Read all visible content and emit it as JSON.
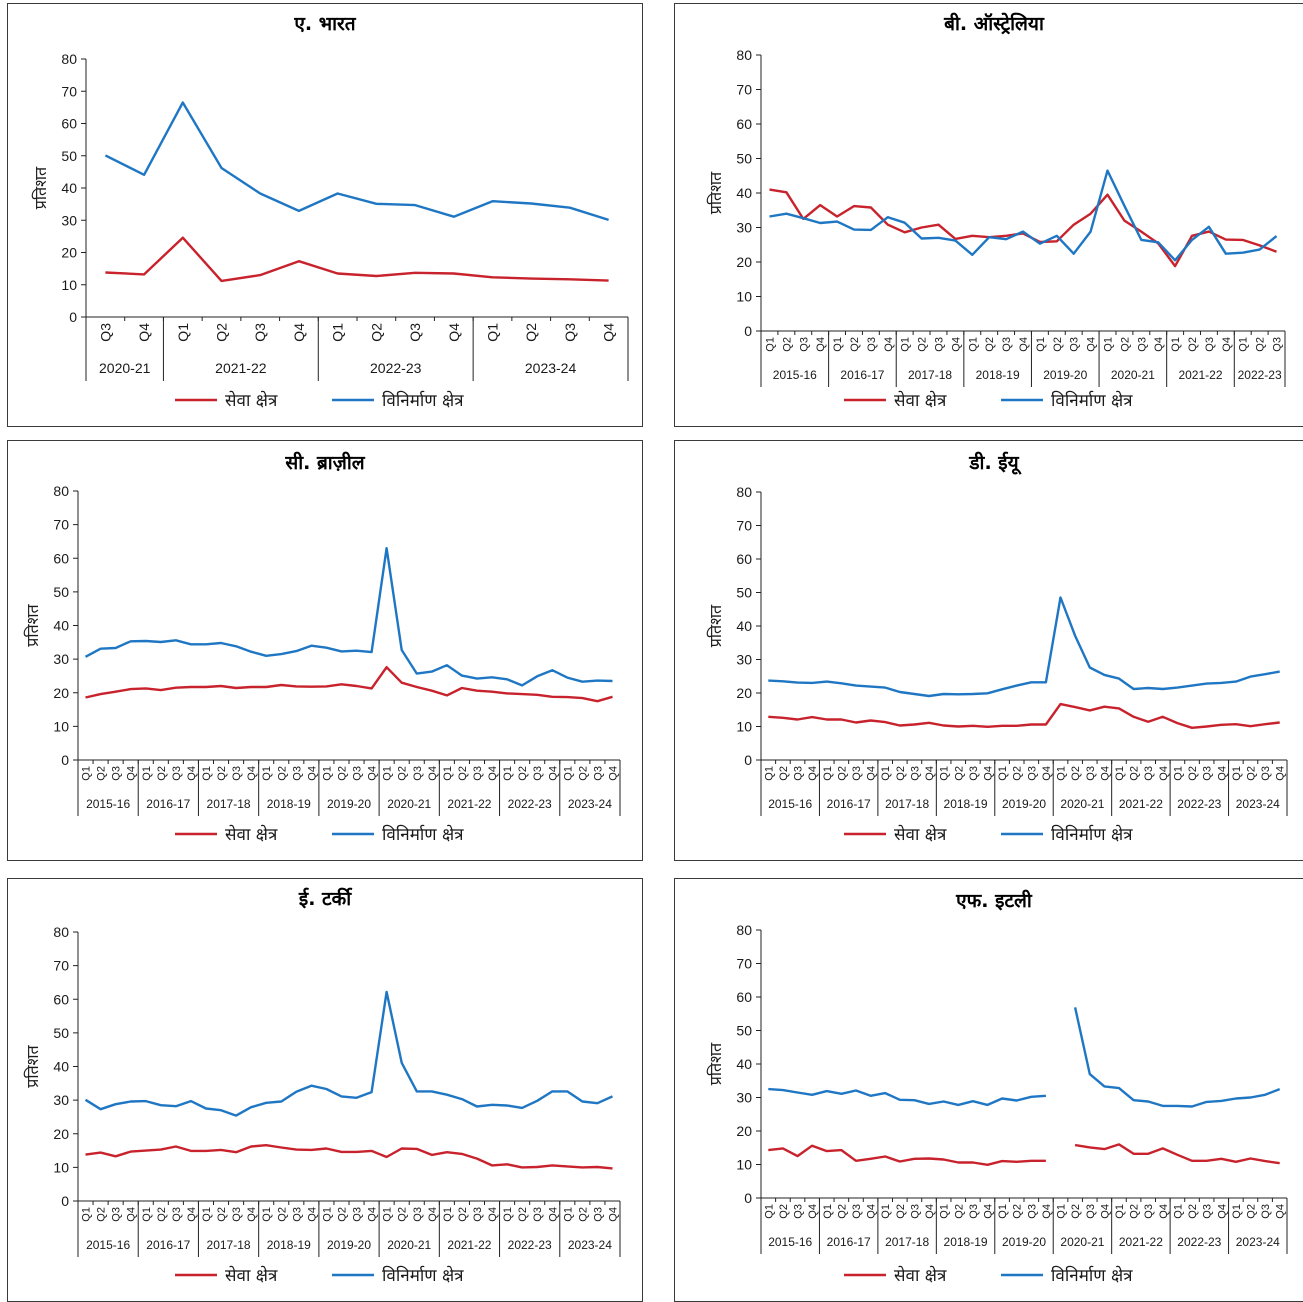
{
  "legend": {
    "service": "सेवा क्षेत्र",
    "manufacturing": "विनिर्माण क्षेत्र"
  },
  "colors": {
    "service": "#c8222c",
    "manufacturing": "#1f77c4"
  },
  "chart_data": [
    {
      "type": "line",
      "title": "ए. भारत",
      "ylabel": "प्रतिशत",
      "ylim": [
        0,
        80
      ],
      "yticks": [
        0,
        10,
        20,
        30,
        40,
        50,
        60,
        70,
        80
      ],
      "x": [
        "Q3",
        "Q4",
        "Q1",
        "Q2",
        "Q3",
        "Q4",
        "Q1",
        "Q2",
        "Q3",
        "Q4",
        "Q1",
        "Q2",
        "Q3",
        "Q4"
      ],
      "year_groups": [
        {
          "label": "2020-21",
          "count": 2
        },
        {
          "label": "2021-22",
          "count": 4
        },
        {
          "label": "2022-23",
          "count": 4
        },
        {
          "label": "2023-24",
          "count": 4
        }
      ],
      "series": [
        {
          "name": "सेवा क्षेत्र",
          "values": [
            13.8,
            13.2,
            24.6,
            11.2,
            13.0,
            17.3,
            13.5,
            12.7,
            13.7,
            13.5,
            12.3,
            11.9,
            11.7,
            11.3
          ]
        },
        {
          "name": "विनिर्माण क्षेत्र",
          "values": [
            50.1,
            44.1,
            66.5,
            46.2,
            38.3,
            32.9,
            38.3,
            35.1,
            34.7,
            31.1,
            35.9,
            35.2,
            33.9,
            30.1
          ]
        }
      ]
    },
    {
      "type": "line",
      "title": "बी. ऑस्ट्रेलिया",
      "ylabel": "प्रतिशत",
      "ylim": [
        0,
        80
      ],
      "yticks": [
        0,
        10,
        20,
        30,
        40,
        50,
        60,
        70,
        80
      ],
      "x": [
        "Q1",
        "Q2",
        "Q3",
        "Q4",
        "Q1",
        "Q2",
        "Q3",
        "Q4",
        "Q1",
        "Q2",
        "Q3",
        "Q4",
        "Q1",
        "Q2",
        "Q3",
        "Q4",
        "Q1",
        "Q2",
        "Q3",
        "Q4",
        "Q1",
        "Q2",
        "Q3",
        "Q4",
        "Q1",
        "Q2",
        "Q3",
        "Q4",
        "Q1",
        "Q2",
        "Q3"
      ],
      "year_groups": [
        {
          "label": "2015-16",
          "count": 4
        },
        {
          "label": "2016-17",
          "count": 4
        },
        {
          "label": "2017-18",
          "count": 4
        },
        {
          "label": "2018-19",
          "count": 4
        },
        {
          "label": "2019-20",
          "count": 4
        },
        {
          "label": "2020-21",
          "count": 4
        },
        {
          "label": "2021-22",
          "count": 4
        },
        {
          "label": "2022-23",
          "count": 3
        }
      ],
      "series": [
        {
          "name": "सेवा क्षेत्र",
          "values": [
            41.0,
            40.2,
            32.5,
            36.5,
            33.2,
            36.2,
            35.8,
            30.8,
            28.6,
            30.0,
            30.8,
            26.7,
            27.6,
            27.2,
            27.6,
            28.3,
            25.8,
            26.0,
            30.8,
            34.0,
            39.5,
            32.0,
            28.8,
            25.4,
            18.8,
            27.6,
            28.8,
            26.5,
            26.4,
            24.8,
            23.0
          ]
        },
        {
          "name": "विनिर्माण क्षेत्र",
          "values": [
            33.2,
            34.0,
            32.7,
            31.3,
            31.7,
            29.4,
            29.3,
            33.0,
            31.4,
            26.8,
            27.0,
            26.2,
            22.1,
            27.2,
            26.6,
            28.8,
            25.3,
            27.6,
            22.4,
            28.8,
            46.5,
            36.3,
            26.4,
            25.7,
            20.5,
            26.4,
            30.2,
            22.4,
            22.7,
            23.6,
            27.5
          ]
        }
      ]
    },
    {
      "type": "line",
      "title": "सी. ब्राज़ील",
      "ylabel": "प्रतिशत",
      "ylim": [
        0,
        80
      ],
      "yticks": [
        0,
        10,
        20,
        30,
        40,
        50,
        60,
        70,
        80
      ],
      "x": [
        "Q1",
        "Q2",
        "Q3",
        "Q4",
        "Q1",
        "Q2",
        "Q3",
        "Q4",
        "Q1",
        "Q2",
        "Q3",
        "Q4",
        "Q1",
        "Q2",
        "Q3",
        "Q4",
        "Q1",
        "Q2",
        "Q3",
        "Q4",
        "Q1",
        "Q2",
        "Q3",
        "Q4",
        "Q1",
        "Q2",
        "Q3",
        "Q4",
        "Q1",
        "Q2",
        "Q3",
        "Q4",
        "Q1",
        "Q2",
        "Q3",
        "Q4"
      ],
      "year_groups": [
        {
          "label": "2015-16",
          "count": 4
        },
        {
          "label": "2016-17",
          "count": 4
        },
        {
          "label": "2017-18",
          "count": 4
        },
        {
          "label": "2018-19",
          "count": 4
        },
        {
          "label": "2019-20",
          "count": 4
        },
        {
          "label": "2020-21",
          "count": 4
        },
        {
          "label": "2021-22",
          "count": 4
        },
        {
          "label": "2022-23",
          "count": 4
        },
        {
          "label": "2023-24",
          "count": 4
        }
      ],
      "series": [
        {
          "name": "सेवा क्षेत्र",
          "values": [
            18.6,
            19.6,
            20.3,
            21.1,
            21.3,
            20.8,
            21.5,
            21.7,
            21.7,
            22.0,
            21.4,
            21.7,
            21.7,
            22.3,
            21.9,
            21.8,
            21.9,
            22.5,
            22.0,
            21.3,
            27.6,
            23.0,
            21.7,
            20.6,
            19.2,
            21.4,
            20.6,
            20.3,
            19.8,
            19.6,
            19.4,
            18.8,
            18.7,
            18.4,
            17.5,
            18.8
          ]
        },
        {
          "name": "विनिर्माण क्षेत्र",
          "values": [
            30.7,
            33.1,
            33.3,
            35.3,
            35.4,
            35.1,
            35.6,
            34.4,
            34.4,
            34.8,
            33.8,
            32.2,
            31.0,
            31.5,
            32.4,
            34.0,
            33.4,
            32.3,
            32.5,
            32.1,
            63.0,
            32.7,
            25.7,
            26.3,
            28.2,
            25.1,
            24.2,
            24.6,
            24.0,
            22.2,
            24.9,
            26.7,
            24.5,
            23.3,
            23.6,
            23.5
          ]
        }
      ]
    },
    {
      "type": "line",
      "title": "डी. ईयू",
      "ylabel": "प्रतिशत",
      "ylim": [
        0,
        80
      ],
      "yticks": [
        0,
        10,
        20,
        30,
        40,
        50,
        60,
        70,
        80
      ],
      "x": [
        "Q1",
        "Q2",
        "Q3",
        "Q4",
        "Q1",
        "Q2",
        "Q3",
        "Q4",
        "Q1",
        "Q2",
        "Q3",
        "Q4",
        "Q1",
        "Q2",
        "Q3",
        "Q4",
        "Q1",
        "Q2",
        "Q3",
        "Q4",
        "Q1",
        "Q2",
        "Q3",
        "Q4",
        "Q1",
        "Q2",
        "Q3",
        "Q4",
        "Q1",
        "Q2",
        "Q3",
        "Q4",
        "Q1",
        "Q2",
        "Q3",
        "Q4"
      ],
      "year_groups": [
        {
          "label": "2015-16",
          "count": 4
        },
        {
          "label": "2016-17",
          "count": 4
        },
        {
          "label": "2017-18",
          "count": 4
        },
        {
          "label": "2018-19",
          "count": 4
        },
        {
          "label": "2019-20",
          "count": 4
        },
        {
          "label": "2020-21",
          "count": 4
        },
        {
          "label": "2021-22",
          "count": 4
        },
        {
          "label": "2022-23",
          "count": 4
        },
        {
          "label": "2023-24",
          "count": 4
        }
      ],
      "series": [
        {
          "name": "सेवा क्षेत्र",
          "values": [
            12.9,
            12.6,
            12.1,
            12.8,
            12.1,
            12.1,
            11.2,
            11.8,
            11.3,
            10.3,
            10.6,
            11.1,
            10.3,
            10.0,
            10.2,
            9.9,
            10.2,
            10.2,
            10.6,
            10.6,
            16.7,
            15.8,
            14.8,
            15.9,
            15.4,
            12.9,
            11.4,
            12.9,
            11.0,
            9.6,
            10.0,
            10.5,
            10.7,
            10.1,
            10.7,
            11.2
          ]
        },
        {
          "name": "विनिर्माण क्षेत्र",
          "values": [
            23.7,
            23.5,
            23.1,
            23.0,
            23.4,
            22.9,
            22.2,
            21.9,
            21.6,
            20.3,
            19.7,
            19.1,
            19.7,
            19.6,
            19.7,
            19.9,
            21.1,
            22.2,
            23.2,
            23.2,
            48.5,
            37.1,
            27.6,
            25.4,
            24.3,
            21.2,
            21.5,
            21.2,
            21.6,
            22.2,
            22.8,
            23.0,
            23.4,
            24.9,
            25.6,
            26.4
          ]
        }
      ]
    },
    {
      "type": "line",
      "title": "ई. टर्की",
      "ylabel": "प्रतिशत",
      "ylim": [
        0,
        80
      ],
      "yticks": [
        0,
        10,
        20,
        30,
        40,
        50,
        60,
        70,
        80
      ],
      "x": [
        "Q1",
        "Q2",
        "Q3",
        "Q4",
        "Q1",
        "Q2",
        "Q3",
        "Q4",
        "Q1",
        "Q2",
        "Q3",
        "Q4",
        "Q1",
        "Q2",
        "Q3",
        "Q4",
        "Q1",
        "Q2",
        "Q3",
        "Q4",
        "Q1",
        "Q2",
        "Q3",
        "Q4",
        "Q1",
        "Q2",
        "Q3",
        "Q4",
        "Q1",
        "Q2",
        "Q3",
        "Q4",
        "Q1",
        "Q2",
        "Q3",
        "Q4"
      ],
      "year_groups": [
        {
          "label": "2015-16",
          "count": 4
        },
        {
          "label": "2016-17",
          "count": 4
        },
        {
          "label": "2017-18",
          "count": 4
        },
        {
          "label": "2018-19",
          "count": 4
        },
        {
          "label": "2019-20",
          "count": 4
        },
        {
          "label": "2020-21",
          "count": 4
        },
        {
          "label": "2021-22",
          "count": 4
        },
        {
          "label": "2022-23",
          "count": 4
        },
        {
          "label": "2023-24",
          "count": 4
        }
      ],
      "series": [
        {
          "name": "सेवा क्षेत्र",
          "values": [
            13.8,
            14.4,
            13.3,
            14.7,
            15.0,
            15.3,
            16.2,
            14.9,
            14.9,
            15.2,
            14.5,
            16.2,
            16.6,
            15.9,
            15.3,
            15.2,
            15.6,
            14.6,
            14.6,
            14.9,
            13.1,
            15.6,
            15.5,
            13.7,
            14.5,
            14.0,
            12.6,
            10.6,
            10.9,
            10.0,
            10.1,
            10.6,
            10.3,
            10.0,
            10.1,
            9.7
          ]
        },
        {
          "name": "विनिर्माण क्षेत्र",
          "values": [
            30.1,
            27.3,
            28.8,
            29.6,
            29.7,
            28.5,
            28.2,
            29.7,
            27.5,
            27.0,
            25.4,
            27.9,
            29.2,
            29.6,
            32.5,
            34.3,
            33.3,
            31.1,
            30.7,
            32.4,
            62.2,
            41.1,
            32.6,
            32.6,
            31.6,
            30.3,
            28.1,
            28.6,
            28.4,
            27.7,
            29.8,
            32.6,
            32.6,
            29.6,
            29.1,
            31.1
          ]
        }
      ]
    },
    {
      "type": "line",
      "title": "एफ. इटली",
      "ylabel": "प्रतिशत",
      "ylim": [
        0,
        80
      ],
      "yticks": [
        0,
        10,
        20,
        30,
        40,
        50,
        60,
        70,
        80
      ],
      "x": [
        "Q1",
        "Q2",
        "Q3",
        "Q4",
        "Q1",
        "Q2",
        "Q3",
        "Q4",
        "Q1",
        "Q2",
        "Q3",
        "Q4",
        "Q1",
        "Q2",
        "Q3",
        "Q4",
        "Q1",
        "Q2",
        "Q3",
        "Q4",
        "Q1",
        "Q2",
        "Q3",
        "Q4",
        "Q1",
        "Q2",
        "Q3",
        "Q4",
        "Q1",
        "Q2",
        "Q3",
        "Q4",
        "Q1",
        "Q2",
        "Q3",
        "Q4"
      ],
      "year_groups": [
        {
          "label": "2015-16",
          "count": 4
        },
        {
          "label": "2016-17",
          "count": 4
        },
        {
          "label": "2017-18",
          "count": 4
        },
        {
          "label": "2018-19",
          "count": 4
        },
        {
          "label": "2019-20",
          "count": 4
        },
        {
          "label": "2020-21",
          "count": 4
        },
        {
          "label": "2021-22",
          "count": 4
        },
        {
          "label": "2022-23",
          "count": 4
        },
        {
          "label": "2023-24",
          "count": 4
        }
      ],
      "series": [
        {
          "name": "सेवा क्षेत्र",
          "values": [
            14.3,
            14.8,
            12.5,
            15.6,
            14.0,
            14.3,
            11.1,
            11.7,
            12.4,
            10.9,
            11.7,
            11.8,
            11.5,
            10.6,
            10.6,
            9.9,
            11.0,
            10.8,
            11.1,
            11.1,
            null,
            15.8,
            15.1,
            14.6,
            16.0,
            13.2,
            13.2,
            14.8,
            12.9,
            11.1,
            11.1,
            11.7,
            10.8,
            11.8,
            11.0,
            10.4
          ]
        },
        {
          "name": "विनिर्माण क्षेत्र",
          "values": [
            32.5,
            32.2,
            31.5,
            30.8,
            31.9,
            31.1,
            32.1,
            30.5,
            31.3,
            29.3,
            29.2,
            28.1,
            28.8,
            27.8,
            28.9,
            27.8,
            29.7,
            29.1,
            30.2,
            30.5,
            null,
            56.9,
            37.0,
            33.3,
            32.8,
            29.2,
            28.8,
            27.5,
            27.5,
            27.3,
            28.7,
            29.0,
            29.7,
            30.0,
            30.8,
            32.5
          ]
        }
      ]
    }
  ]
}
